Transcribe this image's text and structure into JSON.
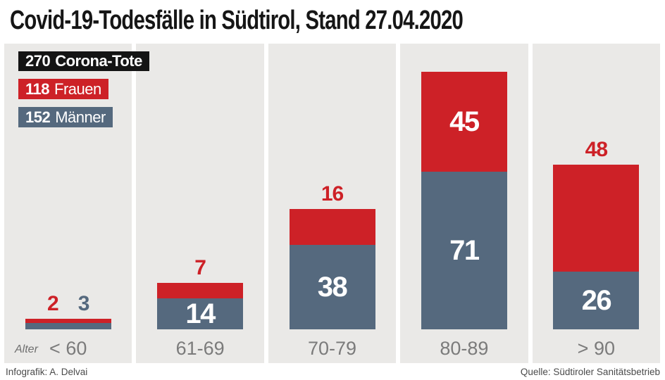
{
  "title": "Covid-19-Todesfälle in Südtirol, Stand 27.04.2020",
  "legend": {
    "total": {
      "value": "270",
      "label": "Corona-Tote",
      "bg": "#141414"
    },
    "women": {
      "value": "118",
      "label": "Frauen",
      "bg": "#cd2127"
    },
    "men": {
      "value": "152",
      "label": "Männer",
      "bg": "#55697e"
    }
  },
  "axis": {
    "age_label": "Alter"
  },
  "footer": {
    "left": "Infografik: A. Delvai",
    "right": "Quelle: Südtiroler Sanitätsbetrieb"
  },
  "colors": {
    "women_red": "#cd2127",
    "men_blue": "#55697e",
    "panel_bg": "#eae9e7",
    "axis_gray": "#7b7b7b",
    "title_black": "#161616"
  },
  "chart_data": {
    "type": "bar",
    "stacked": true,
    "title": "Covid-19-Todesfälle in Südtirol, Stand 27.04.2020",
    "categories": [
      "< 60",
      "61-69",
      "70-79",
      "80-89",
      "> 90"
    ],
    "series": [
      {
        "name": "Frauen",
        "color": "#cd2127",
        "values": [
          2,
          7,
          16,
          45,
          48
        ]
      },
      {
        "name": "Männer",
        "color": "#55697e",
        "values": [
          3,
          14,
          38,
          71,
          26
        ]
      }
    ],
    "totals": {
      "all": 270,
      "frauen": 118,
      "maenner": 152
    },
    "xlabel": "Alter",
    "ylabel": "",
    "grid": false,
    "legend_position": "top-left",
    "label_placement": {
      "frauen": [
        "above",
        "above",
        "above",
        "inside",
        "above"
      ],
      "maenner": [
        "above",
        "inside",
        "inside",
        "inside",
        "inside"
      ]
    }
  }
}
